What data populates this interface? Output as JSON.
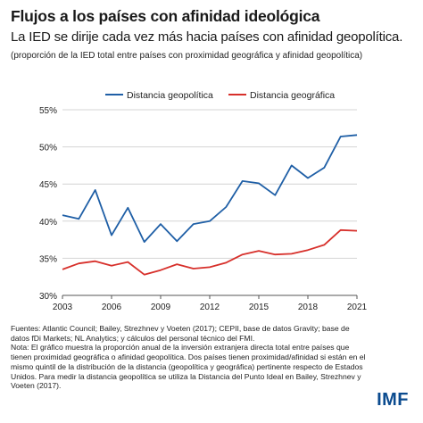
{
  "header": {
    "title": "Flujos a los países con afinidad ideológica",
    "subtitle": "La IED se dirije cada vez más hacia países con afinidad geopolítica.",
    "note": "(proporción de la IED total entre países con proximidad geográfica y afinidad geopolítica)"
  },
  "footer": {
    "sources": "Fuentes: Atlantic Council; Bailey, Strezhnev y Voeten (2017); CEPII, base de datos Gravity; base de datos fDi Markets; NL Analytics; y cálculos del personal técnico del FMI.",
    "note": "Nota: El gráfico muestra la proporción anual de la inversión extranjera directa total entre países que tienen proximidad geográfica o afinidad geopolítica. Dos países tienen proximidad/afinidad si están en el mismo quintil de la distribución de la distancia (geopolítica y geográfica) pertinente respecto de Estados Unidos. Para medir la distancia geopolítica se utiliza la Distancia del Punto Ideal en Bailey, Strezhnev y Voeten (2017).",
    "logo": "IMF"
  },
  "chart_data": {
    "type": "line",
    "title": "",
    "xlabel": "",
    "ylabel": "",
    "x": [
      2003,
      2004,
      2005,
      2006,
      2007,
      2008,
      2009,
      2010,
      2011,
      2012,
      2013,
      2014,
      2015,
      2016,
      2017,
      2018,
      2019,
      2020,
      2021
    ],
    "x_ticks": [
      "2003",
      "2006",
      "2009",
      "2012",
      "2015",
      "2018",
      "2021"
    ],
    "y_ticks": [
      "30%",
      "35%",
      "40%",
      "45%",
      "50%",
      "55%"
    ],
    "ylim": [
      30,
      55
    ],
    "xlim": [
      2003,
      2021
    ],
    "grid": "horizontal",
    "legend_position": "top",
    "series": [
      {
        "name": "Distancia geopolítica",
        "color": "#1f5fa6",
        "values": [
          40.8,
          40.3,
          44.2,
          38.1,
          41.8,
          37.2,
          39.6,
          37.3,
          39.6,
          40.0,
          41.9,
          45.4,
          45.1,
          43.5,
          47.5,
          45.8,
          47.2,
          51.4,
          51.6
        ]
      },
      {
        "name": "Distancia geográfica",
        "color": "#d7302b",
        "values": [
          33.5,
          34.3,
          34.6,
          34.0,
          34.5,
          32.8,
          33.4,
          34.2,
          33.6,
          33.8,
          34.4,
          35.5,
          36.0,
          35.5,
          35.6,
          36.1,
          36.8,
          38.8,
          38.7
        ]
      }
    ]
  }
}
